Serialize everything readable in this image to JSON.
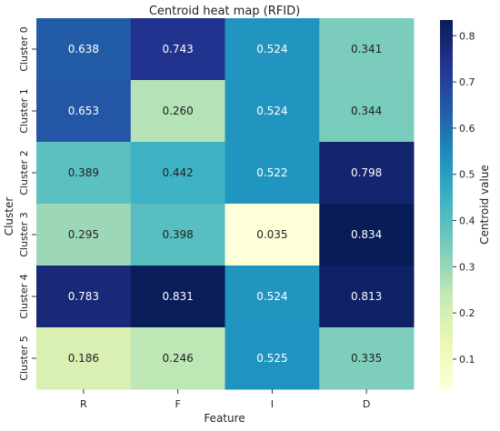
{
  "chart_data": {
    "type": "heatmap",
    "title": "Centroid heat map (RFID)",
    "xlabel": "Feature",
    "ylabel": "Cluster",
    "x_categories": [
      "R",
      "F",
      "I",
      "D"
    ],
    "y_categories": [
      "Cluster 0",
      "Cluster 1",
      "Cluster 2",
      "Cluster 3",
      "Cluster 4",
      "Cluster 5"
    ],
    "values": [
      [
        0.638,
        0.743,
        0.524,
        0.341
      ],
      [
        0.653,
        0.26,
        0.524,
        0.344
      ],
      [
        0.389,
        0.442,
        0.522,
        0.798
      ],
      [
        0.295,
        0.398,
        0.035,
        0.834
      ],
      [
        0.783,
        0.831,
        0.524,
        0.813
      ],
      [
        0.186,
        0.246,
        0.525,
        0.335
      ]
    ],
    "value_labels": [
      [
        "0.638",
        "0.743",
        "0.524",
        "0.341"
      ],
      [
        "0.653",
        "0.260",
        "0.524",
        "0.344"
      ],
      [
        "0.389",
        "0.442",
        "0.522",
        "0.798"
      ],
      [
        "0.295",
        "0.398",
        "0.035",
        "0.834"
      ],
      [
        "0.783",
        "0.831",
        "0.524",
        "0.813"
      ],
      [
        "0.186",
        "0.246",
        "0.525",
        "0.335"
      ]
    ],
    "colormap": "YlGnBu",
    "colorbar": {
      "label": "Centroid value",
      "range": [
        0.035,
        0.834
      ],
      "ticks": [
        0.1,
        0.2,
        0.3,
        0.4,
        0.5,
        0.6,
        0.7,
        0.8
      ],
      "tick_labels": [
        "0.1",
        "0.2",
        "0.3",
        "0.4",
        "0.5",
        "0.6",
        "0.7",
        "0.8"
      ]
    }
  }
}
